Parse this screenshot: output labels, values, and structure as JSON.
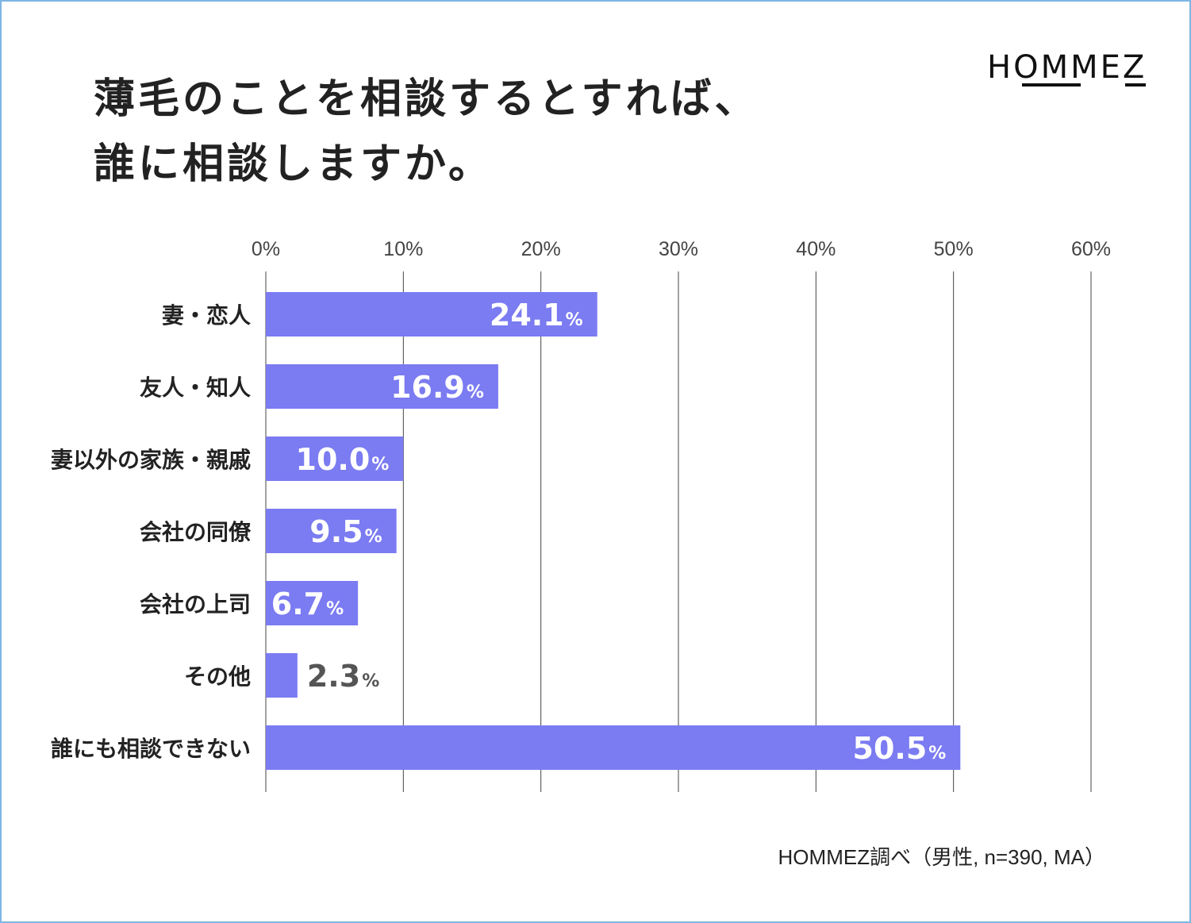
{
  "title_line1": "薄毛のことを相談するとすれば、",
  "title_line2": "誰に相談しますか。",
  "logo": "HOMMEZ",
  "source": "HOMMEZ調べ（男性, n=390, MA）",
  "colors": {
    "bar": "#7b7bf2",
    "grid": "#444444",
    "label_inside": "#ffffff",
    "label_outside": "#555555",
    "frame": "#7fb6e6"
  },
  "chart_data": {
    "type": "bar",
    "orientation": "horizontal",
    "categories": [
      "妻・恋人",
      "友人・知人",
      "妻以外の家族・親戚",
      "会社の同僚",
      "会社の上司",
      "その他",
      "誰にも相談できない"
    ],
    "values": [
      24.1,
      16.9,
      10.0,
      9.5,
      6.7,
      2.3,
      50.5
    ],
    "value_labels": [
      "24.1",
      "16.9",
      "10.0",
      "9.5",
      "6.7",
      "2.3",
      "50.5"
    ],
    "unit": "%",
    "xlim": [
      0,
      60
    ],
    "ticks": [
      0,
      10,
      20,
      30,
      40,
      50,
      60
    ],
    "tick_labels": [
      "0%",
      "10%",
      "20%",
      "30%",
      "40%",
      "50%",
      "60%"
    ],
    "grid": true
  }
}
